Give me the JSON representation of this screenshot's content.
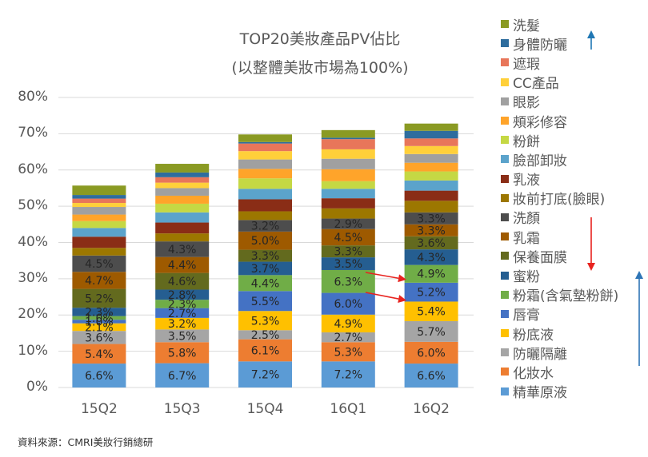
{
  "chart_data": {
    "type": "bar",
    "stacked": true,
    "title": "TOP20美妝產品PV佔比",
    "subtitle": "(以整體美妝市場為100%)",
    "xlabel": "",
    "ylabel": "",
    "ylim": [
      0,
      80
    ],
    "yticks": [
      "0%",
      "10%",
      "20%",
      "30%",
      "40%",
      "50%",
      "60%",
      "70%",
      "80%"
    ],
    "ytick_values": [
      0,
      10,
      20,
      30,
      40,
      50,
      60,
      70,
      80
    ],
    "grid": true,
    "legend_position": "right",
    "categories": [
      "15Q2",
      "15Q3",
      "15Q4",
      "16Q1",
      "16Q2"
    ],
    "series": [
      {
        "name": "精華原液",
        "color": "#5B9BD5",
        "values": [
          6.6,
          6.7,
          7.2,
          7.2,
          6.6
        ],
        "labels": [
          "6.6%",
          "6.7%",
          "7.2%",
          "7.2%",
          "6.6%"
        ]
      },
      {
        "name": "化妝水",
        "color": "#ED7D31",
        "values": [
          5.4,
          5.8,
          6.1,
          5.3,
          6.0
        ],
        "labels": [
          "5.4%",
          "5.8%",
          "6.1%",
          "5.3%",
          "6.0%"
        ]
      },
      {
        "name": "防曬隔離",
        "color": "#A5A5A5",
        "values": [
          3.6,
          3.5,
          2.5,
          2.7,
          5.7
        ],
        "labels": [
          "3.6%",
          "3.5%",
          "2.5%",
          "2.7%",
          "5.7%"
        ]
      },
      {
        "name": "粉底液",
        "color": "#FFC000",
        "values": [
          2.1,
          3.2,
          5.3,
          4.9,
          5.4
        ],
        "labels": [
          "2.1%",
          "3.2%",
          "5.3%",
          "4.9%",
          "5.4%"
        ]
      },
      {
        "name": "唇膏",
        "color": "#4472C4",
        "values": [
          1.0,
          2.7,
          5.5,
          6.0,
          5.2
        ],
        "labels": [
          "1.0%",
          "2.7%",
          "5.5%",
          "6.0%",
          "5.2%"
        ]
      },
      {
        "name": "粉霜(含氣墊粉餅)",
        "color": "#70AD47",
        "values": [
          1.0,
          2.3,
          4.4,
          6.3,
          4.9
        ],
        "labels": [
          "1.0%",
          "2.3%",
          "4.4%",
          "6.3%",
          "4.9%"
        ]
      },
      {
        "name": "蜜粉",
        "color": "#255E91",
        "values": [
          2.3,
          2.8,
          3.7,
          3.5,
          4.3
        ],
        "labels": [
          "2.3%",
          "2.8%",
          "3.7%",
          "3.5%",
          "4.3%"
        ]
      },
      {
        "name": "保養面膜",
        "color": "#636A1E",
        "values": [
          5.2,
          4.6,
          3.3,
          3.3,
          3.6
        ],
        "labels": [
          "5.2%",
          "4.6%",
          "3.3%",
          "3.3%",
          "3.6%"
        ]
      },
      {
        "name": "乳霜",
        "color": "#9E5A00",
        "values": [
          4.7,
          4.4,
          5.0,
          4.5,
          3.3
        ],
        "labels": [
          "4.7%",
          "4.4%",
          "5.0%",
          "4.5%",
          "3.3%"
        ]
      },
      {
        "name": "洗顏",
        "color": "#4D4D4D",
        "values": [
          4.5,
          4.3,
          3.2,
          2.9,
          3.3
        ],
        "labels": [
          "4.5%",
          "4.3%",
          "3.2%",
          "2.9%",
          "3.3%"
        ]
      },
      {
        "name": "妝前打底(臉眼)",
        "color": "#9C7700",
        "values": [
          2.1,
          2.2,
          2.4,
          2.8,
          3.2
        ],
        "labels": [
          "",
          "",
          "",
          "",
          ""
        ]
      },
      {
        "name": "乳液",
        "color": "#8A2D16",
        "values": [
          3.1,
          3.0,
          3.3,
          2.8,
          2.8
        ],
        "labels": [
          "",
          "",
          "",
          "",
          ""
        ]
      },
      {
        "name": "臉部卸妝",
        "color": "#5BA3CB",
        "values": [
          2.4,
          2.8,
          2.9,
          2.6,
          2.8
        ],
        "labels": [
          "",
          "",
          "",
          "",
          ""
        ]
      },
      {
        "name": "粉餅",
        "color": "#C5D844",
        "values": [
          1.9,
          2.4,
          2.9,
          2.1,
          2.5
        ],
        "labels": [
          "",
          "",
          "",
          "",
          ""
        ]
      },
      {
        "name": "頰彩修容",
        "color": "#FFA42A",
        "values": [
          1.8,
          2.2,
          2.6,
          3.3,
          2.4
        ],
        "labels": [
          "",
          "",
          "",
          "",
          ""
        ]
      },
      {
        "name": "眼影",
        "color": "#A0A0A0",
        "values": [
          2.1,
          2.1,
          2.6,
          2.9,
          2.4
        ],
        "labels": [
          "",
          "",
          "",
          "",
          ""
        ]
      },
      {
        "name": "CC產品",
        "color": "#FFD03A",
        "values": [
          1.1,
          1.5,
          2.3,
          2.6,
          2.2
        ],
        "labels": [
          "",
          "",
          "",
          "",
          ""
        ]
      },
      {
        "name": "遮瑕",
        "color": "#E8765A",
        "values": [
          1.2,
          1.5,
          2.1,
          2.8,
          2.1
        ],
        "labels": [
          "",
          "",
          "",
          "",
          ""
        ]
      },
      {
        "name": "身體防曬",
        "color": "#2E6D9E",
        "values": [
          1.0,
          1.3,
          0.4,
          0.4,
          2.1
        ],
        "labels": [
          "",
          "",
          "",
          "",
          ""
        ]
      },
      {
        "name": "洗髮",
        "color": "#8A9A23",
        "values": [
          2.6,
          2.4,
          2.1,
          2.1,
          2.0
        ],
        "labels": [
          "",
          "",
          "",
          "",
          ""
        ]
      }
    ],
    "legend_order": [
      "洗髮",
      "身體防曬",
      "遮瑕",
      "CC產品",
      "眼影",
      "頰彩修容",
      "粉餅",
      "臉部卸妝",
      "乳液",
      "妝前打底(臉眼)",
      "洗顏",
      "乳霜",
      "保養面膜",
      "蜜粉",
      "粉霜(含氣墊粉餅)",
      "唇膏",
      "粉底液",
      "防曬隔離",
      "化妝水",
      "精華原液"
    ],
    "annotations": [
      {
        "type": "arrow",
        "color": "#1F77B4",
        "direction": "up",
        "near": "身體防曬",
        "meaning": "increase"
      },
      {
        "type": "arrow",
        "color": "#E8231F",
        "direction": "down",
        "span": [
          "洗顏",
          "保養面膜"
        ],
        "meaning": "decrease"
      },
      {
        "type": "arrow",
        "color": "#2E75B6",
        "direction": "up",
        "span": [
          "蜜粉",
          "精華原液"
        ],
        "meaning": "increase"
      },
      {
        "type": "arrow",
        "color": "#E8231F",
        "from_category": "16Q1",
        "to_category": "16Q2",
        "series": "粉霜(含氣墊粉餅)"
      },
      {
        "type": "arrow",
        "color": "#E8231F",
        "from_category": "16Q1",
        "to_category": "16Q2",
        "series": "唇膏"
      }
    ]
  },
  "source": "資料來源：CMRI美妝行銷總研"
}
